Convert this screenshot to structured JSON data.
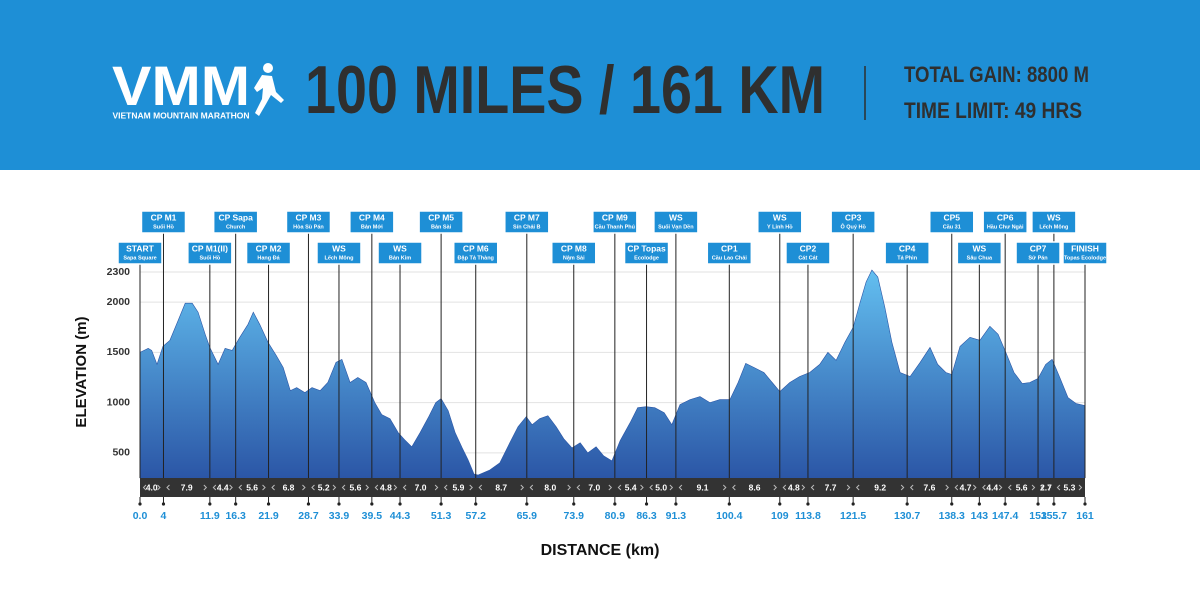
{
  "header": {
    "logo": "VMM",
    "logo_subtitle": "VIETNAM MOUNTAIN MARATHON",
    "title": "100 MILES / 161 KM",
    "total_gain": "TOTAL GAIN: 8800 M",
    "time_limit": "TIME LIMIT: 49 HRS"
  },
  "chart_data": {
    "type": "area",
    "x_label": "DISTANCE (km)",
    "y_label": "ELEVATION (m)",
    "x": [
      0,
      1.4,
      2,
      2.9,
      3.9,
      5.1,
      6.5,
      7.7,
      8.9,
      9.9,
      11.1,
      11.9,
      13.3,
      14.5,
      15.7,
      17,
      18.4,
      19.3,
      20.4,
      21.8,
      23.2,
      24.4,
      25.6,
      26.7,
      28.1,
      29.3,
      30.7,
      32,
      33.4,
      34.4,
      35.8,
      37.1,
      38.5,
      40,
      41.2,
      42.6,
      44,
      45.1,
      46.3,
      47.7,
      49.1,
      50.4,
      51.3,
      52.5,
      53.7,
      54.9,
      55.9,
      56.9,
      57.6,
      59.6,
      61.3,
      63,
      64.4,
      65.8,
      66.8,
      68.1,
      69.5,
      70.9,
      72.2,
      73.6,
      75,
      76.3,
      77.7,
      79,
      80.4,
      81.8,
      83.5,
      84.8,
      86.2,
      87.7,
      89.3,
      90.6,
      92,
      93.7,
      95.4,
      97.1,
      98.8,
      100.5,
      101.9,
      103.2,
      104.6,
      106.3,
      107.7,
      109,
      110.7,
      112.4,
      114.1,
      115.8,
      117.2,
      118.6,
      120.1,
      121.5,
      122.7,
      123.7,
      124.7,
      125.7,
      126.9,
      128.1,
      129.5,
      131.2,
      132.9,
      134.6,
      135.9,
      137.3,
      138.3,
      139.7,
      141.4,
      143.1,
      144.8,
      146.2,
      147.5,
      148.9,
      150.3,
      151.6,
      153,
      154.3,
      155.4,
      156.7,
      158.1,
      159.5,
      161
    ],
    "values": [
      1500,
      1540,
      1520,
      1380,
      1560,
      1620,
      1820,
      1990,
      1990,
      1900,
      1680,
      1550,
      1380,
      1540,
      1520,
      1650,
      1780,
      1900,
      1780,
      1600,
      1470,
      1350,
      1120,
      1150,
      1100,
      1150,
      1120,
      1200,
      1400,
      1430,
      1200,
      1250,
      1200,
      1000,
      880,
      840,
      700,
      630,
      560,
      700,
      850,
      1000,
      1040,
      920,
      700,
      550,
      430,
      290,
      280,
      330,
      400,
      600,
      760,
      860,
      780,
      840,
      870,
      760,
      640,
      550,
      600,
      500,
      560,
      470,
      420,
      620,
      800,
      950,
      960,
      950,
      900,
      780,
      980,
      1030,
      1060,
      1000,
      1030,
      1030,
      1200,
      1390,
      1350,
      1300,
      1200,
      1110,
      1200,
      1260,
      1300,
      1380,
      1500,
      1420,
      1600,
      1750,
      2000,
      2200,
      2320,
      2250,
      1950,
      1600,
      1300,
      1260,
      1400,
      1550,
      1380,
      1300,
      1280,
      1560,
      1650,
      1620,
      1760,
      1680,
      1500,
      1300,
      1190,
      1200,
      1240,
      1380,
      1430,
      1250,
      1050,
      990,
      970
    ],
    "gradient": [
      "#63bff0",
      "#2b56a6"
    ],
    "xlim": [
      0,
      161
    ],
    "ylim": [
      250,
      2300
    ],
    "xticks": [
      {
        "value": 0,
        "label": "0.0"
      },
      4,
      11.9,
      16.3,
      21.9,
      28.7,
      33.9,
      39.5,
      44.3,
      51.3,
      57.2,
      65.9,
      73.9,
      80.9,
      86.3,
      91.3,
      100.4,
      109,
      113.8,
      121.5,
      130.7,
      138.3,
      143,
      147.4,
      153,
      155.7,
      161
    ],
    "yticks": [
      500,
      1000,
      1500,
      2000,
      2300
    ],
    "grid": true,
    "segments": {
      "values": [
        4,
        7.9,
        4.4,
        5.6,
        6.8,
        5.2,
        5.6,
        4.8,
        7,
        5.9,
        8.7,
        8,
        7,
        5.4,
        5,
        9.1,
        8.6,
        4.8,
        7.7,
        9.2,
        7.6,
        4.7,
        4.4,
        5.6,
        2.7,
        5.3
      ],
      "value_labels": [
        "4.0",
        "7.9",
        "4.4",
        "5.6",
        "6.8",
        "5.2",
        "5.6",
        "4.8",
        "7.0",
        "5.9",
        "8.7",
        "8.0",
        "7.0",
        "5.4",
        "5.0",
        "9.1",
        "8.6",
        "4.8",
        "7.7",
        "9.2",
        "7.6",
        "4.7",
        "4.4",
        "5.6",
        "2.7",
        "5.3"
      ]
    },
    "checkpoints": {
      "upper": [
        {
          "name": "CP M1",
          "place": "Suối Hồ",
          "km": 4
        },
        {
          "name": "CP Sapa",
          "place": "Church",
          "km": 16.3
        },
        {
          "name": "CP M3",
          "place": "Hòa Sù Pán",
          "km": 28.7
        },
        {
          "name": "CP M4",
          "place": "Bản Mới",
          "km": 39.5
        },
        {
          "name": "CP M5",
          "place": "Bản Sài",
          "km": 51.3
        },
        {
          "name": "CP M7",
          "place": "Sín Chải B",
          "km": 65.9
        },
        {
          "name": "CP M9",
          "place": "Cầu Thanh Phú",
          "km": 80.9
        },
        {
          "name": "WS",
          "place": "Suối Vạn Dền",
          "km": 91.3
        },
        {
          "name": "WS",
          "place": "Y Linh Hồ",
          "km": 109
        },
        {
          "name": "CP3",
          "place": "Ô Quý Hồ",
          "km": 121.5
        },
        {
          "name": "CP5",
          "place": "Cầu 31",
          "km": 138.3
        },
        {
          "name": "CP6",
          "place": "Hầu Chư Ngài",
          "km": 147.4
        },
        {
          "name": "WS",
          "place": "Lếch Mông",
          "km": 155.7
        }
      ],
      "lower": [
        {
          "name": "START",
          "place": "Sapa Square",
          "km": 0
        },
        {
          "name": "CP M1(II)",
          "place": "Suối Hồ",
          "km": 11.9
        },
        {
          "name": "CP M2",
          "place": "Hang Đá",
          "km": 21.9
        },
        {
          "name": "WS",
          "place": "Lếch Mông",
          "km": 33.9
        },
        {
          "name": "WS",
          "place": "Bản Kim",
          "km": 44.3
        },
        {
          "name": "CP M6",
          "place": "Đập Tả Thàng",
          "km": 57.2
        },
        {
          "name": "CP M8",
          "place": "Nậm Sài",
          "km": 73.9
        },
        {
          "name": "CP Topas",
          "place": "Ecolodge",
          "km": 86.3
        },
        {
          "name": "CP1",
          "place": "Cầu Lao Chải",
          "km": 100.4
        },
        {
          "name": "CP2",
          "place": "Cát Cát",
          "km": 113.8
        },
        {
          "name": "CP4",
          "place": "Tả Phìn",
          "km": 130.7
        },
        {
          "name": "WS",
          "place": "Sâu Chua",
          "km": 143
        },
        {
          "name": "CP7",
          "place": "Sử Pán",
          "km": 153
        },
        {
          "name": "FINISH",
          "place": "Topas Ecolodge",
          "km": 161
        }
      ]
    }
  }
}
